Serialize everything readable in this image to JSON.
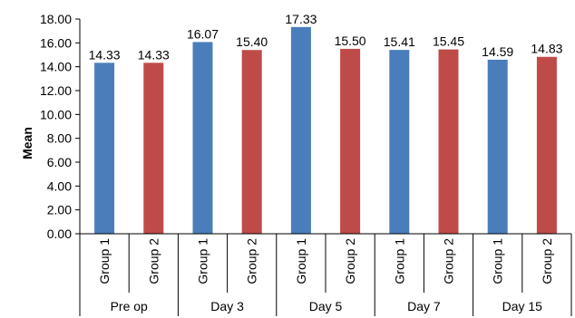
{
  "chart_data": {
    "type": "bar",
    "title": "",
    "xlabel": "",
    "ylabel": "Mean",
    "ylim": [
      0,
      18
    ],
    "yticks": [
      "0.00",
      "2.00",
      "4.00",
      "6.00",
      "8.00",
      "10.00",
      "12.00",
      "14.00",
      "16.00",
      "18.00"
    ],
    "grid": false,
    "legend": "none",
    "categories": [
      "Pre op",
      "Day 3",
      "Day 5",
      "Day 7",
      "Day 15"
    ],
    "group_labels": [
      "Group 1",
      "Group 2"
    ],
    "series": [
      {
        "values": [
          14.33,
          16.07,
          17.33,
          15.41,
          14.59
        ],
        "labels": [
          "14.33",
          "16.07",
          "17.33",
          "15.41",
          "14.59"
        ],
        "color": "#4a7ebb"
      },
      {
        "values": [
          14.33,
          15.4,
          15.5,
          15.45,
          14.83
        ],
        "labels": [
          "14.33",
          "15.40",
          "15.50",
          "15.45",
          "14.83"
        ],
        "color": "#be4b48"
      }
    ]
  }
}
